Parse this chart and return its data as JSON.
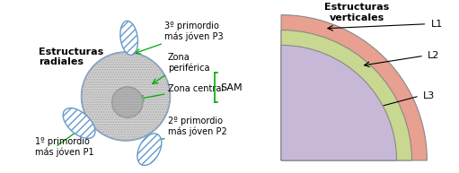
{
  "bg_color": "#ffffff",
  "left_title": "Estructuras\nradiales",
  "right_title": "Estructuras\nverticales",
  "sam_label": "SAM",
  "zona_periferica": "Zona\nperiférica",
  "zona_central": "Zona central",
  "p1_label": "1º primordio\nmás jóven P1",
  "p2_label": "2º primordio\nmás jóven P2",
  "p3_label": "3º primordio\nmás jóven P3",
  "l1_label": "L1",
  "l2_label": "L2",
  "l3_label": "L3",
  "main_circle_edge": "#6699cc",
  "primordium_hatch": "////",
  "primordium_face": "#ffffff",
  "primordium_edge": "#6699cc",
  "arrow_color": "#00aa00",
  "bracket_color": "#00aa00",
  "l1_color": "#e8a090",
  "l2_color": "#c8d890",
  "l3_color": "#c8b8d8",
  "font_size_title": 8,
  "font_size_label": 7,
  "font_size_zone": 7
}
